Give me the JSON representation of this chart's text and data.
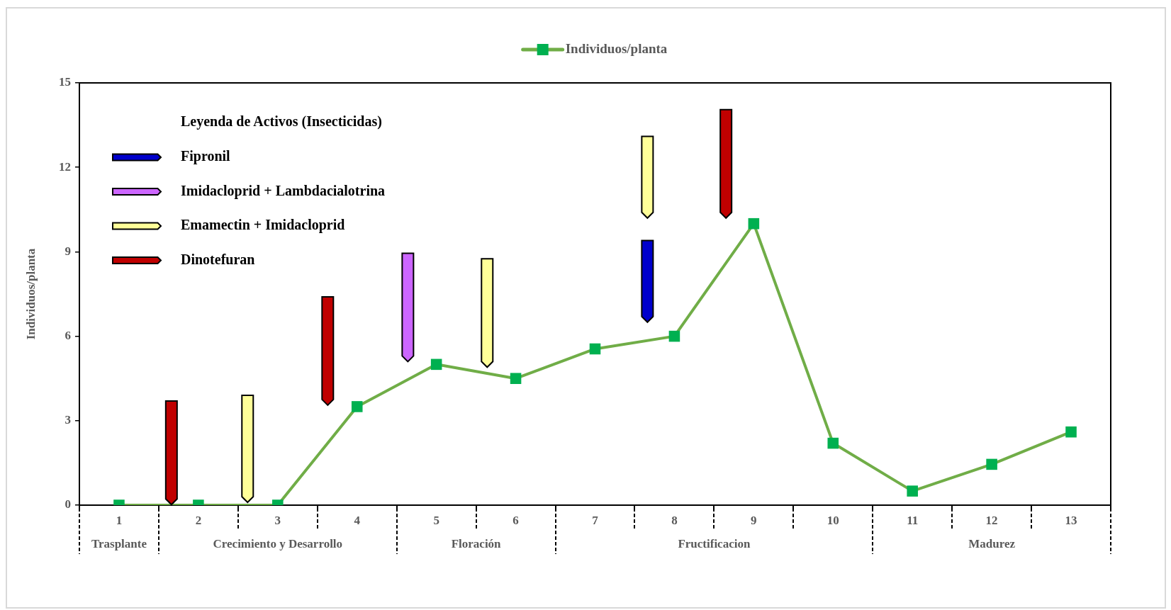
{
  "chart_data": {
    "type": "line",
    "ylabel": "Individuos/planta",
    "legend_title": "Leyenda de Activos (Insecticidas)",
    "legend": "top left",
    "marker": "square",
    "line_style": "solid",
    "x": [
      1,
      2,
      3,
      4,
      5,
      6,
      7,
      8,
      9,
      10,
      11,
      12,
      13
    ],
    "xlim": [
      0.5,
      13.5
    ],
    "xticks": [
      {
        "value": 0.5,
        "label": null
      },
      1,
      {
        "value": 1.5,
        "label": null
      },
      2,
      3,
      4,
      {
        "value": 4.5,
        "label": null
      },
      5,
      6,
      {
        "value": 6.5,
        "label": null
      },
      7,
      8,
      9,
      10,
      {
        "value": 10.5,
        "label": null
      },
      11,
      12,
      13,
      {
        "value": 13.5,
        "label": null
      }
    ],
    "ylim": [
      0,
      15
    ],
    "yticks": [
      0,
      3,
      6,
      9,
      12,
      15
    ],
    "annotations": [
      "Trasplante",
      "Crecimiento y Desarrollo",
      "Floración",
      "Fructificacion",
      "Madurez"
    ],
    "series": [
      {
        "name": "Individuos/planta",
        "color": "#70ad47",
        "colors": [
          "#00b050",
          "#00b050",
          "#00b050",
          "#00b050",
          "#00b050",
          "#00b050",
          "#00b050",
          "#00b050",
          "#00b050",
          "#00b050",
          "#00b050",
          "#00b050",
          "#00b050"
        ],
        "values": [
          0,
          0,
          0,
          3.5,
          5,
          4.5,
          5.55,
          6,
          10,
          2.2,
          0.5,
          1.45,
          2.6
        ]
      },
      {
        "name": "Fipronil",
        "type": "bar",
        "color": "#0000cc",
        "x": [
          7.66
        ],
        "base": [
          6.5
        ],
        "values": [
          2.9
        ]
      },
      {
        "name": "Imidacloprid + Lambdacialotrina",
        "type": "bar",
        "color": "#cc66ff",
        "x": [
          4.64
        ],
        "base": [
          5.1
        ],
        "values": [
          3.85
        ]
      },
      {
        "name": "Emamectin + Imidacloprid",
        "type": "bar",
        "color": "#ffff99",
        "x": [
          2.62,
          5.64,
          7.66
        ],
        "base": [
          0.1,
          4.9,
          10.2
        ],
        "values": [
          3.8,
          3.85,
          2.9
        ]
      },
      {
        "name": "Dinotefuran",
        "type": "bar",
        "color": "#c00000",
        "x": [
          1.66,
          3.63,
          8.65
        ],
        "base": [
          0,
          3.55,
          10.2
        ],
        "values": [
          3.7,
          3.85,
          3.85
        ]
      }
    ]
  }
}
